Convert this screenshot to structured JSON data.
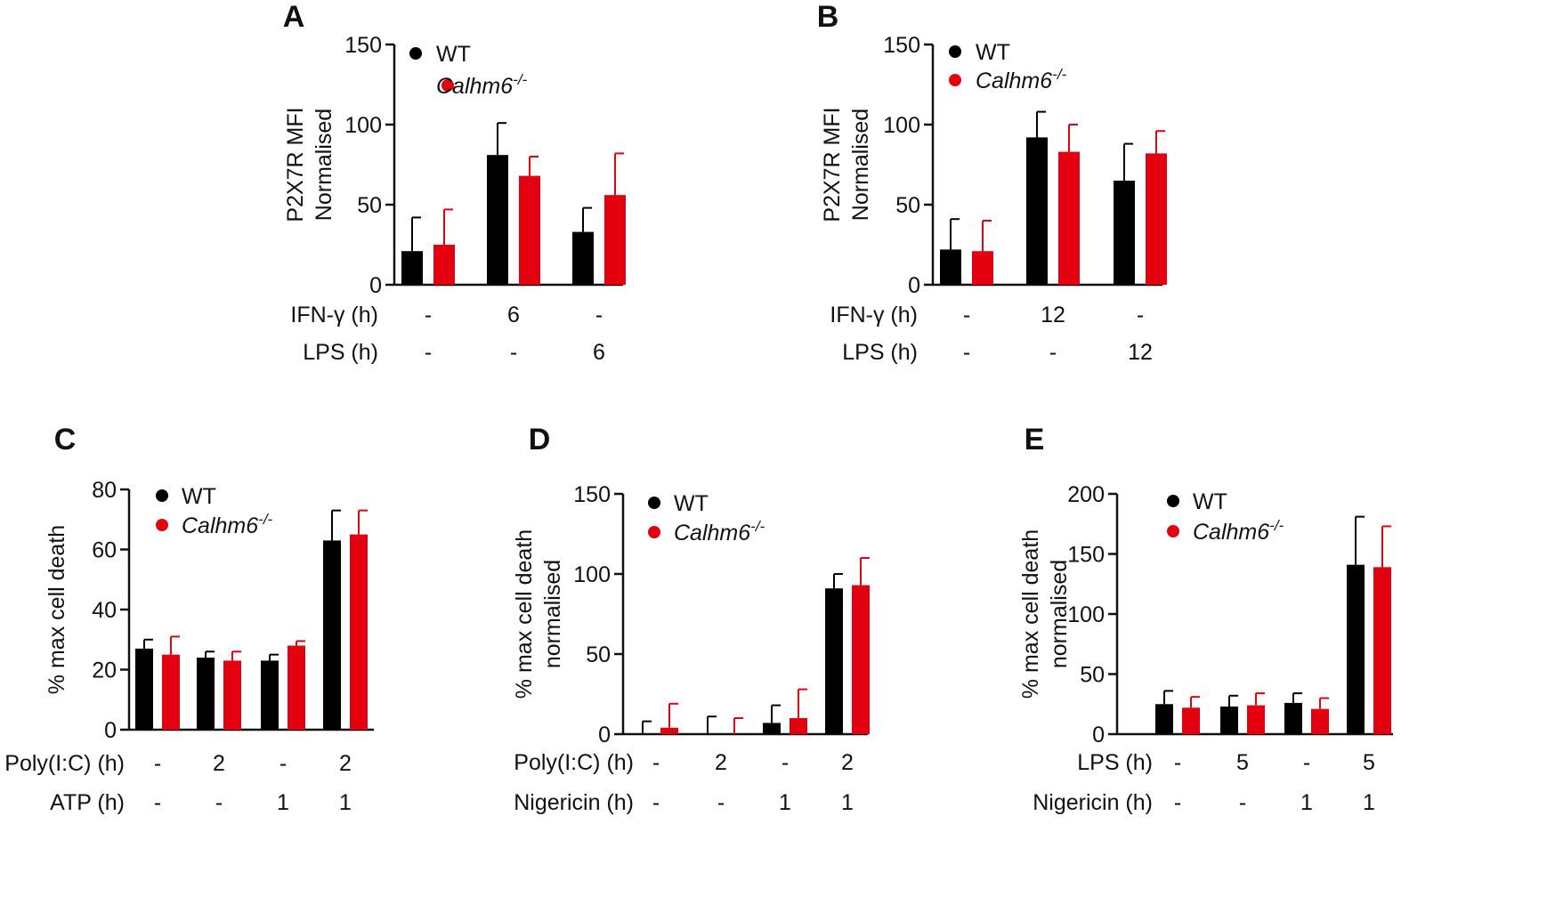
{
  "colors": {
    "WT": "#000000",
    "Calhm6": "#e3000f",
    "axis": "#111111"
  },
  "legend": {
    "wt": "WT",
    "ko_base": "Calhm6",
    "ko_sup": "-/-"
  },
  "chart_data": [
    {
      "panel": "A",
      "type": "bar",
      "ylabel_lines": [
        "P2X7R MFI",
        "Normalised"
      ],
      "ylim": [
        0,
        150
      ],
      "yticks": [
        "0",
        "50",
        "100",
        "150"
      ],
      "grid": false,
      "legend_position": "top-left",
      "conditions": [
        {
          "name": "IFN-γ (h)",
          "values": [
            "-",
            "6",
            "-"
          ]
        },
        {
          "name": "LPS (h)",
          "values": [
            "-",
            "-",
            "6"
          ]
        }
      ],
      "series": [
        {
          "name": "WT",
          "values": [
            21,
            81,
            33
          ],
          "errors": [
            21,
            20,
            15
          ]
        },
        {
          "name": "Calhm6-/-",
          "values": [
            25,
            68,
            56
          ],
          "errors": [
            22,
            12,
            26
          ]
        }
      ]
    },
    {
      "panel": "B",
      "type": "bar",
      "ylabel_lines": [
        "P2X7R MFI",
        "Normalised"
      ],
      "ylim": [
        0,
        150
      ],
      "yticks": [
        "0",
        "50",
        "100",
        "150"
      ],
      "grid": false,
      "legend_position": "top-left",
      "conditions": [
        {
          "name": "IFN-γ (h)",
          "values": [
            "-",
            "12",
            "-"
          ]
        },
        {
          "name": "LPS (h)",
          "values": [
            "-",
            "-",
            "12"
          ]
        }
      ],
      "series": [
        {
          "name": "WT",
          "values": [
            22,
            92,
            65
          ],
          "errors": [
            19,
            16,
            23
          ]
        },
        {
          "name": "Calhm6-/-",
          "values": [
            21,
            83,
            82
          ],
          "errors": [
            19,
            17,
            14
          ]
        }
      ]
    },
    {
      "panel": "C",
      "type": "bar",
      "ylabel_lines": [
        "% max cell death"
      ],
      "ylim": [
        0,
        80
      ],
      "yticks": [
        "0",
        "20",
        "40",
        "60",
        "80"
      ],
      "grid": false,
      "legend_position": "top-left",
      "conditions": [
        {
          "name": "Poly(I:C) (h)",
          "values": [
            "-",
            "2",
            "-",
            "2"
          ]
        },
        {
          "name": "ATP (h)",
          "values": [
            "-",
            "-",
            "1",
            "1"
          ]
        }
      ],
      "series": [
        {
          "name": "WT",
          "values": [
            27,
            24,
            23,
            63
          ],
          "errors": [
            3,
            2,
            2,
            10
          ]
        },
        {
          "name": "Calhm6-/-",
          "values": [
            25,
            23,
            28,
            65
          ],
          "errors": [
            6,
            3,
            1.5,
            8
          ]
        }
      ]
    },
    {
      "panel": "D",
      "type": "bar",
      "ylabel_lines": [
        "% max cell death",
        "normalised"
      ],
      "ylim": [
        0,
        150
      ],
      "yticks": [
        "0",
        "50",
        "100",
        "150"
      ],
      "grid": false,
      "legend_position": "top-left",
      "conditions": [
        {
          "name": "Poly(I:C) (h)",
          "values": [
            "-",
            "2",
            "-",
            "2"
          ]
        },
        {
          "name": "Nigericin (h)",
          "values": [
            "-",
            "-",
            "1",
            "1"
          ]
        }
      ],
      "series": [
        {
          "name": "WT",
          "values": [
            0,
            0,
            7,
            91
          ],
          "errors": [
            8,
            11,
            11,
            9
          ]
        },
        {
          "name": "Calhm6-/-",
          "values": [
            4,
            0,
            10,
            93
          ],
          "errors": [
            15,
            10,
            18,
            17
          ]
        }
      ]
    },
    {
      "panel": "E",
      "type": "bar",
      "ylabel_lines": [
        "% max cell death",
        "normalised"
      ],
      "ylim": [
        0,
        200
      ],
      "yticks": [
        "0",
        "50",
        "100",
        "150",
        "200"
      ],
      "grid": false,
      "legend_position": "top-left",
      "conditions": [
        {
          "name": "LPS (h)",
          "values": [
            "-",
            "5",
            "-",
            "5"
          ]
        },
        {
          "name": "Nigericin (h)",
          "values": [
            "-",
            "-",
            "1",
            "1"
          ]
        }
      ],
      "series": [
        {
          "name": "WT",
          "values": [
            25,
            23,
            26,
            141
          ],
          "errors": [
            11,
            9,
            8,
            40
          ]
        },
        {
          "name": "Calhm6-/-",
          "values": [
            22,
            24,
            21,
            139
          ],
          "errors": [
            9,
            10,
            9,
            34
          ]
        }
      ]
    }
  ]
}
